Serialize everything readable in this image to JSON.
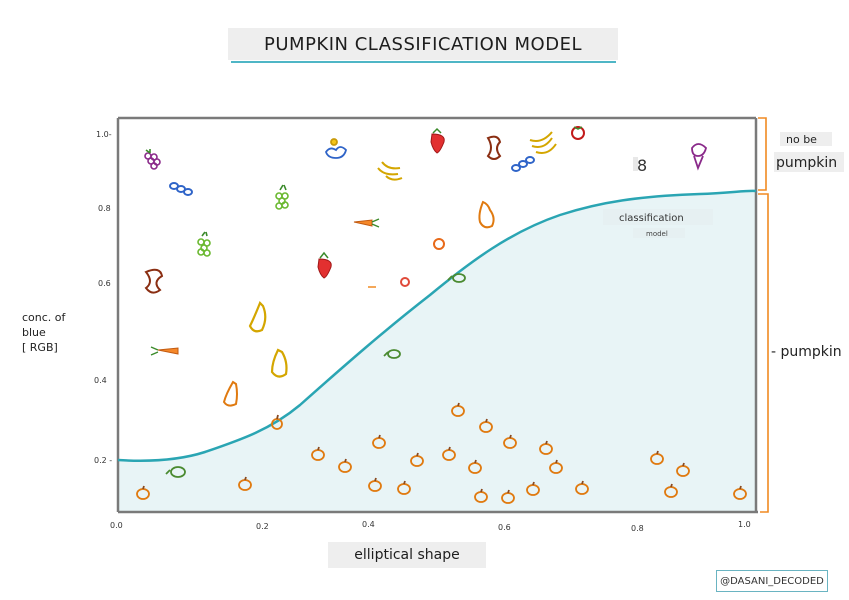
{
  "title": "PUMPKIN CLASSIFICATION MODEL",
  "axes": {
    "y_label_lines": [
      "conc. of",
      "blue",
      "[ RGB]"
    ],
    "x_label": "elliptical shape",
    "y_ticks": [
      "1.0-",
      "0.8",
      "0.6",
      "0.4",
      "0.2 -"
    ],
    "x_ticks": [
      "0.0",
      "0.2",
      "0.4",
      "0.6",
      "0.8",
      "1.0"
    ]
  },
  "curve": {
    "label": "classification",
    "sublabel": "model"
  },
  "regions": {
    "upper_label_line1": "no be",
    "upper_label_line2": "pumpkin",
    "lower_label": "- pumpkin"
  },
  "stray_mark": "8",
  "credit": "@DASANI_DECODED",
  "colors": {
    "axis": "#7a7a7a",
    "curve": "#2aa5b3",
    "pumpkin_region": "#e8f4f6",
    "bracket": "#f08a22",
    "title_underline": "#4fb6c6"
  },
  "icons": {
    "non_pumpkins": [
      "grapes-icon",
      "blueberries-icon",
      "carrot-icon",
      "strawberry-icon",
      "gourd-icon",
      "banana-icon",
      "duck-icon",
      "apple-core-icon",
      "ice-cream-icon",
      "squash-icon",
      "tomato-icon",
      "peach-icon"
    ],
    "pumpkins": [
      "pumpkin-icon",
      "leaf-icon"
    ]
  }
}
